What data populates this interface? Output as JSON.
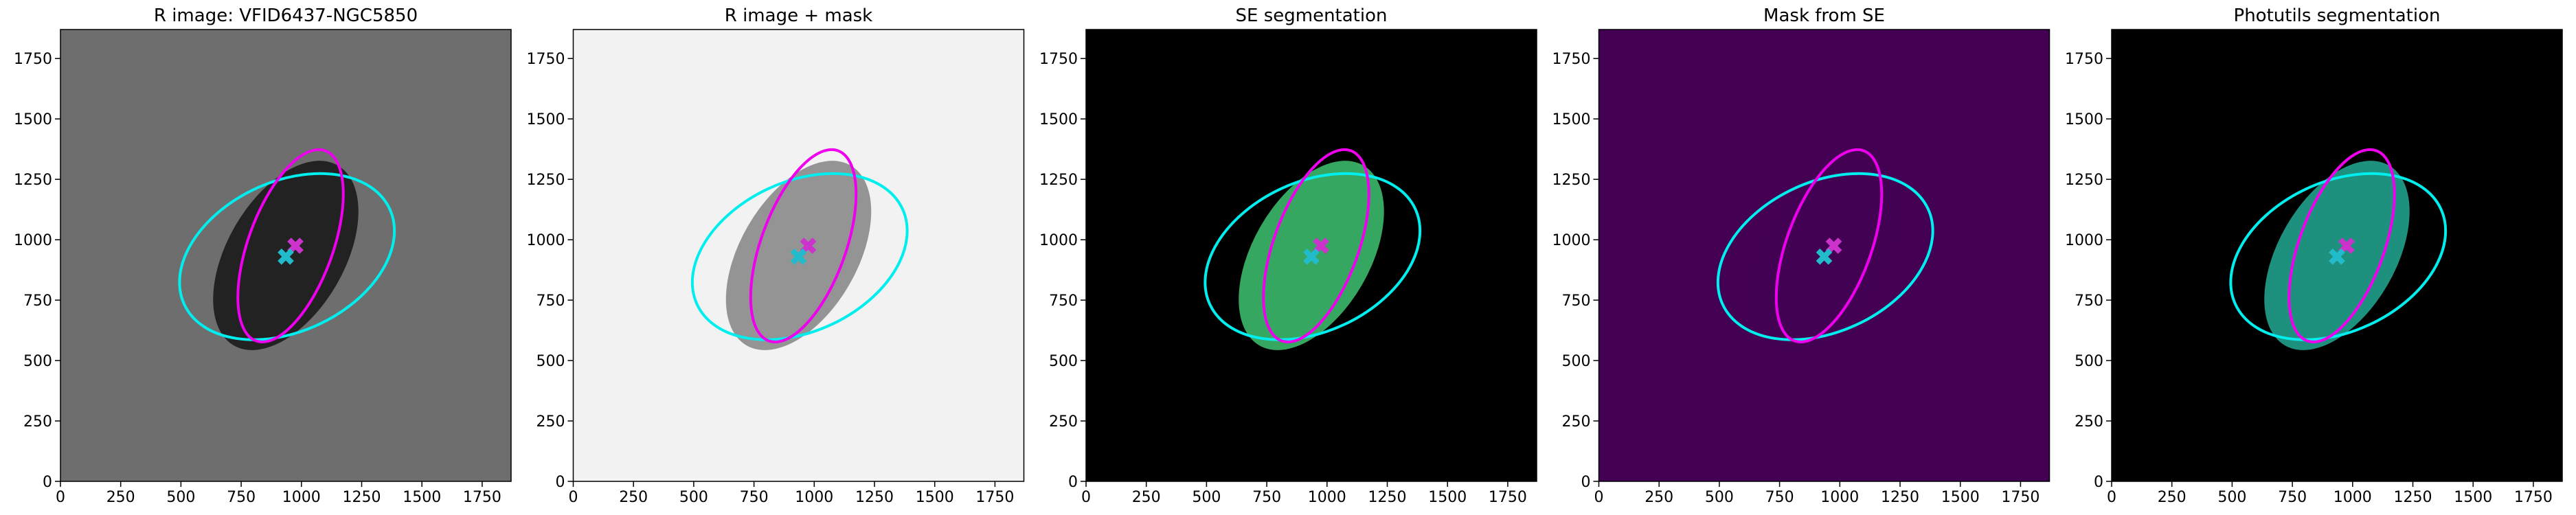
{
  "chart_data": [
    {
      "type": "image",
      "title": "R image: VFID6437-NGC5850",
      "background": "#6e6e6e",
      "blob": "#1a1a1a",
      "xlim": [
        0,
        1870
      ],
      "ylim": [
        0,
        1870
      ],
      "xticks": [
        0,
        250,
        500,
        750,
        1000,
        1250,
        1500,
        1750
      ],
      "yticks": [
        0,
        250,
        500,
        750,
        1000,
        1250,
        1500,
        1750
      ],
      "ellipses": [
        {
          "color": "#00eeee",
          "cx": 940,
          "cy": 930,
          "rx": 470,
          "ry": 310,
          "angle": 25
        },
        {
          "color": "#ee00ee",
          "cx": 955,
          "cy": 975,
          "rx": 420,
          "ry": 175,
          "angle": 70
        }
      ],
      "markers": [
        {
          "color": "#cc33cc",
          "x": 975,
          "y": 975
        },
        {
          "color": "#22bbcc",
          "x": 935,
          "y": 930
        }
      ]
    },
    {
      "type": "image",
      "title": "R image + mask",
      "background": "#f2f2f2",
      "blob": "#8a8a8a",
      "xlim": [
        0,
        1870
      ],
      "ylim": [
        0,
        1870
      ],
      "xticks": [
        0,
        250,
        500,
        750,
        1000,
        1250,
        1500,
        1750
      ],
      "yticks": [
        0,
        250,
        500,
        750,
        1000,
        1250,
        1500,
        1750
      ],
      "ellipses": [
        {
          "color": "#00eeee",
          "cx": 940,
          "cy": 930,
          "rx": 470,
          "ry": 310,
          "angle": 25
        },
        {
          "color": "#ee00ee",
          "cx": 955,
          "cy": 975,
          "rx": 420,
          "ry": 175,
          "angle": 70
        }
      ],
      "markers": [
        {
          "color": "#cc33cc",
          "x": 975,
          "y": 975
        },
        {
          "color": "#22bbcc",
          "x": 935,
          "y": 930
        }
      ]
    },
    {
      "type": "image",
      "title": "SE segmentation",
      "background": "#000000",
      "blob": "#3cb96a",
      "xlim": [
        0,
        1870
      ],
      "ylim": [
        0,
        1870
      ],
      "xticks": [
        0,
        250,
        500,
        750,
        1000,
        1250,
        1500,
        1750
      ],
      "yticks": [
        0,
        250,
        500,
        750,
        1000,
        1250,
        1500,
        1750
      ],
      "ellipses": [
        {
          "color": "#00eeee",
          "cx": 940,
          "cy": 930,
          "rx": 470,
          "ry": 310,
          "angle": 25
        },
        {
          "color": "#ee00ee",
          "cx": 955,
          "cy": 975,
          "rx": 420,
          "ry": 175,
          "angle": 70
        }
      ],
      "markers": [
        {
          "color": "#cc33cc",
          "x": 975,
          "y": 975
        },
        {
          "color": "#22bbcc",
          "x": 935,
          "y": 930
        }
      ]
    },
    {
      "type": "image",
      "title": "Mask from SE",
      "background": "#440154",
      "blob": "#440154",
      "xlim": [
        0,
        1870
      ],
      "ylim": [
        0,
        1870
      ],
      "xticks": [
        0,
        250,
        500,
        750,
        1000,
        1250,
        1500,
        1750
      ],
      "yticks": [
        0,
        250,
        500,
        750,
        1000,
        1250,
        1500,
        1750
      ],
      "ellipses": [
        {
          "color": "#00eeee",
          "cx": 940,
          "cy": 930,
          "rx": 470,
          "ry": 310,
          "angle": 25
        },
        {
          "color": "#ee00ee",
          "cx": 955,
          "cy": 975,
          "rx": 420,
          "ry": 175,
          "angle": 70
        }
      ],
      "markers": [
        {
          "color": "#cc33cc",
          "x": 975,
          "y": 975
        },
        {
          "color": "#22bbcc",
          "x": 935,
          "y": 930
        }
      ]
    },
    {
      "type": "image",
      "title": "Photutils segmentation",
      "background": "#000000",
      "blob": "#21a08c",
      "xlim": [
        0,
        1870
      ],
      "ylim": [
        0,
        1870
      ],
      "xticks": [
        0,
        250,
        500,
        750,
        1000,
        1250,
        1500,
        1750
      ],
      "yticks": [
        0,
        250,
        500,
        750,
        1000,
        1250,
        1500,
        1750
      ],
      "ellipses": [
        {
          "color": "#00eeee",
          "cx": 940,
          "cy": 930,
          "rx": 470,
          "ry": 310,
          "angle": 25
        },
        {
          "color": "#ee00ee",
          "cx": 955,
          "cy": 975,
          "rx": 420,
          "ry": 175,
          "angle": 70
        }
      ],
      "markers": [
        {
          "color": "#cc33cc",
          "x": 975,
          "y": 975
        },
        {
          "color": "#22bbcc",
          "x": 935,
          "y": 930
        }
      ]
    }
  ]
}
